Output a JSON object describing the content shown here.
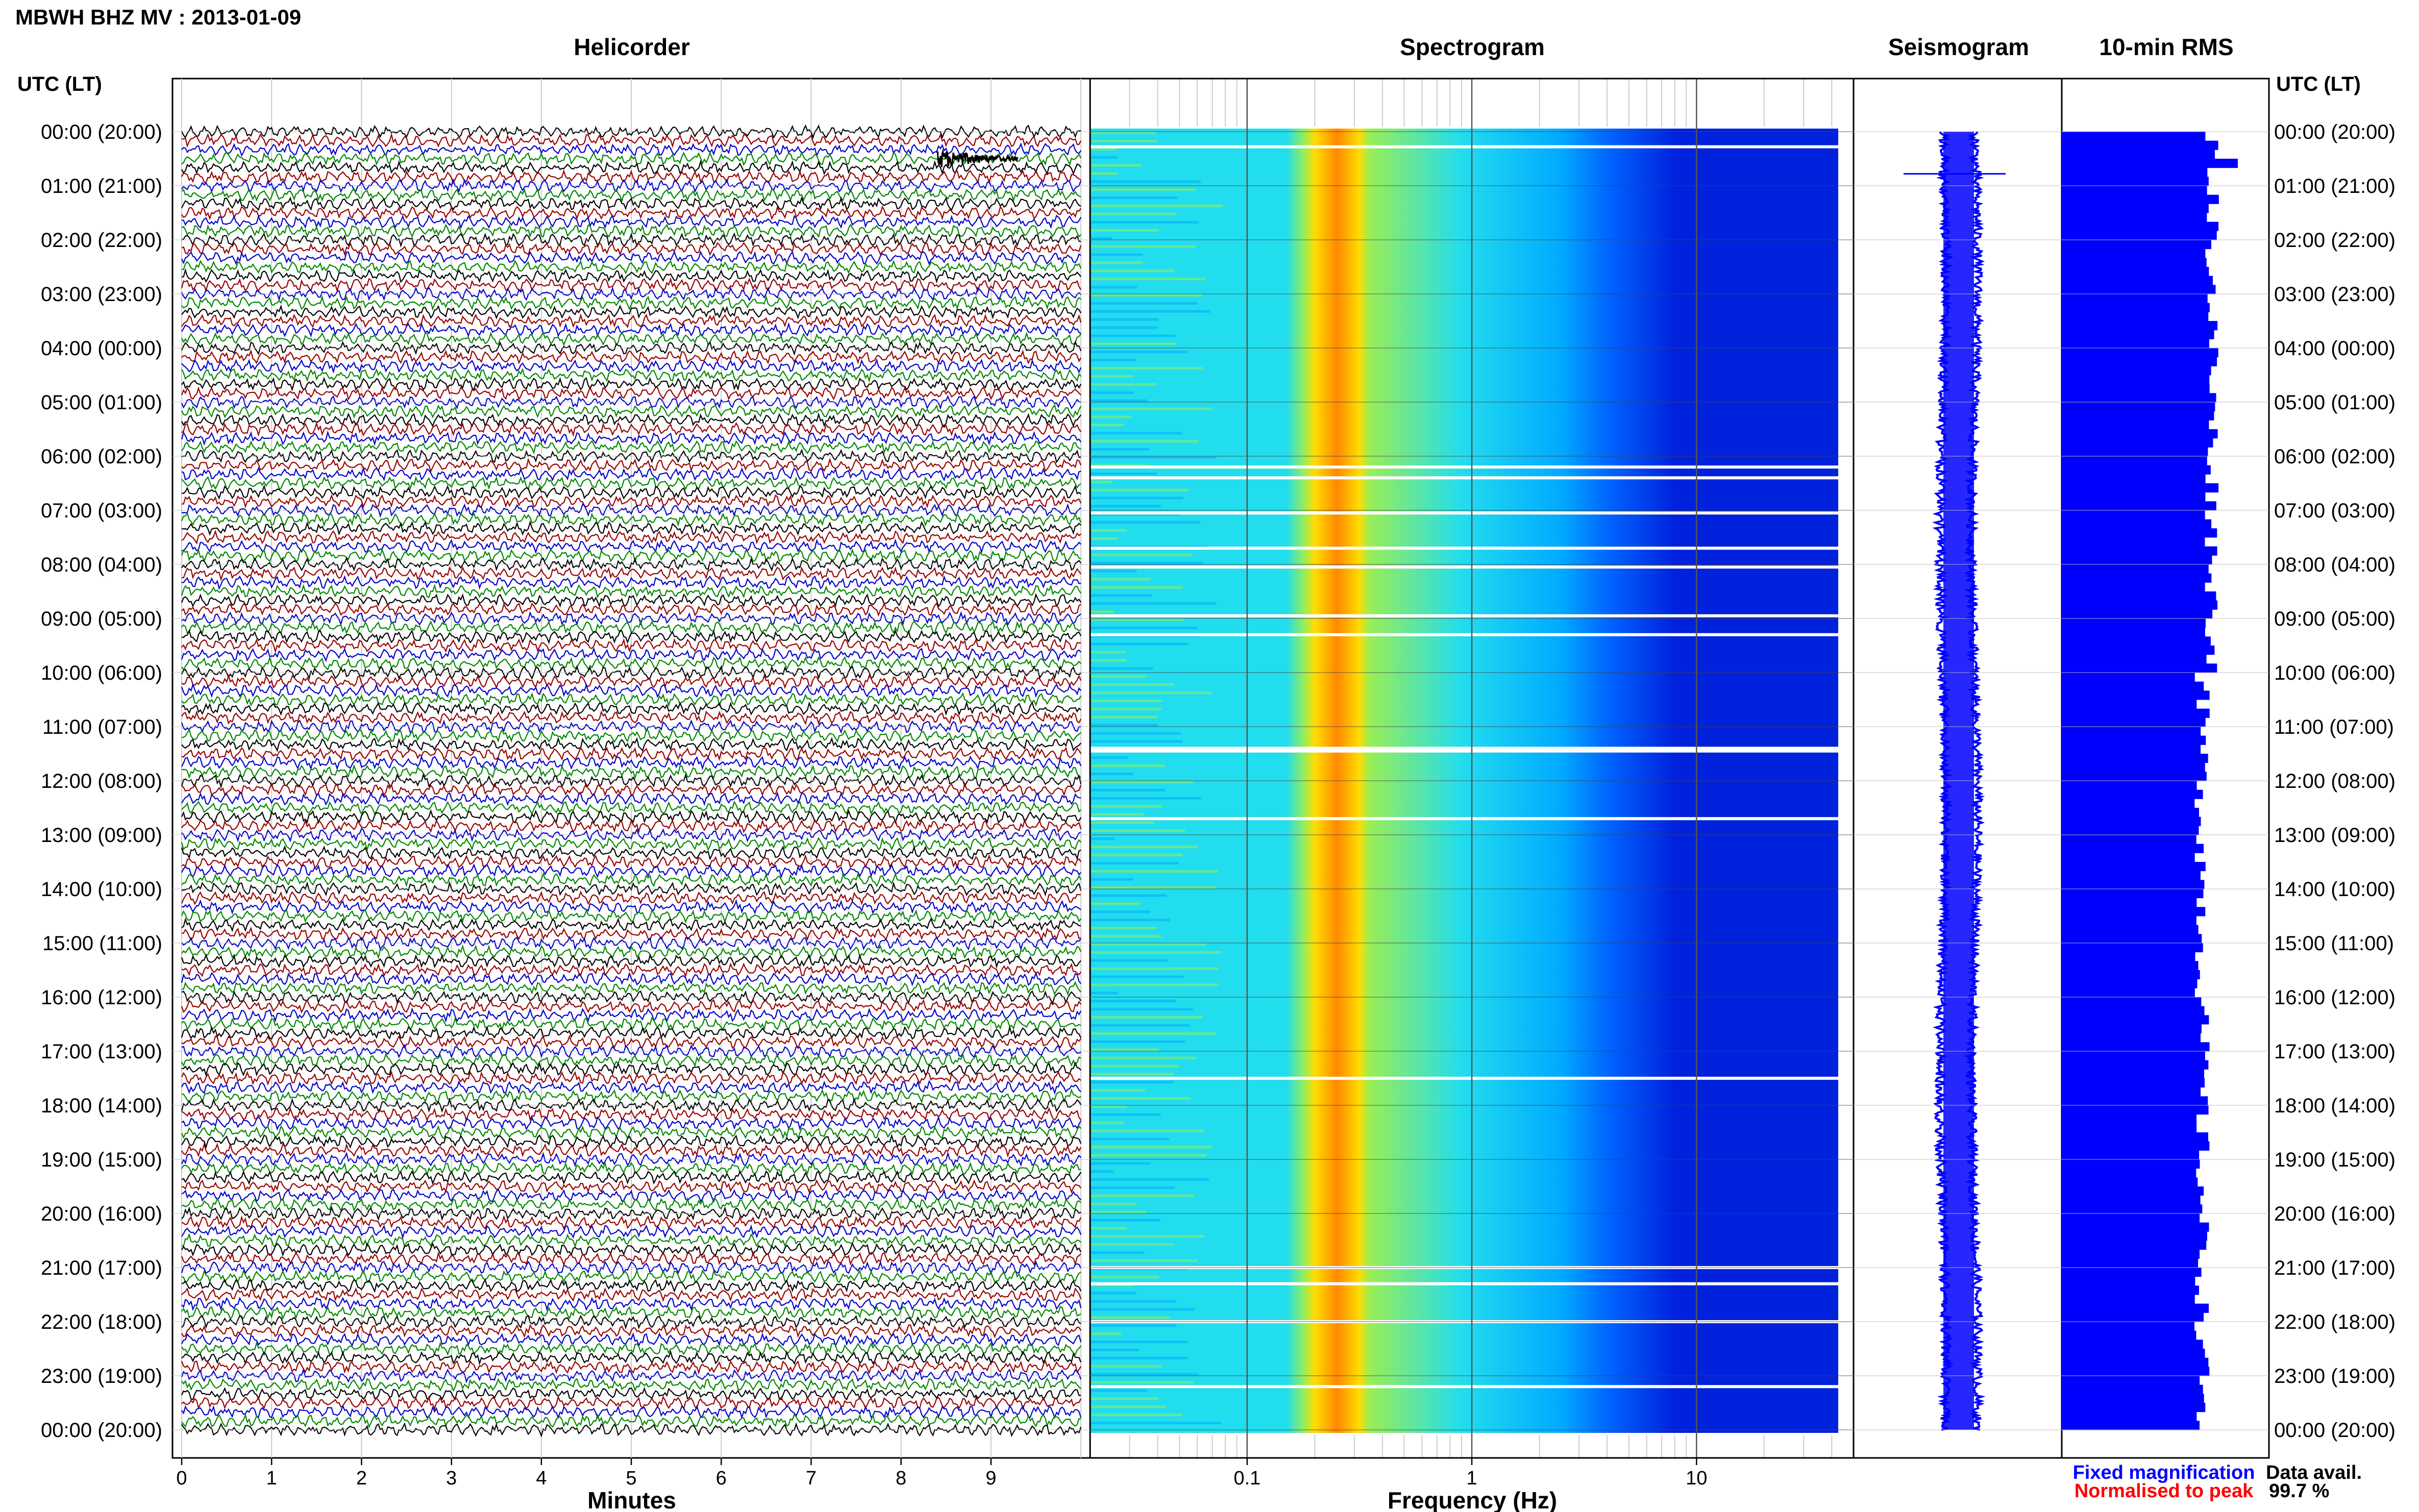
{
  "header": {
    "station_title": "MBWH BHZ MV : 2013-01-09"
  },
  "panels": {
    "helicorder_title": "Helicorder",
    "spectrogram_title": "Spectrogram",
    "seismogram_title": "Seismogram",
    "rms_title": "10-min RMS"
  },
  "axes": {
    "time_axis_label": "UTC (LT)",
    "minutes_xlabel": "Minutes",
    "frequency_xlabel": "Frequency (Hz)"
  },
  "legend": {
    "fixed_magnification": "Fixed magnification",
    "normalised_to_peak": "Normalised to peak",
    "fixed_color": "#0000ff",
    "normalised_color": "#ff0000"
  },
  "availability": {
    "label": "Data avail.",
    "value": "99.7 %"
  },
  "chart_data": [
    {
      "type": "line",
      "name": "helicorder",
      "title": "Helicorder",
      "xlabel": "Minutes",
      "x_ticks": [
        "0",
        "1",
        "2",
        "3",
        "4",
        "5",
        "6",
        "7",
        "8",
        "9"
      ],
      "xlim": [
        0,
        10
      ],
      "trace_colors": [
        "#000000",
        "#990000",
        "#0000cc",
        "#008800"
      ],
      "traces_per_hour": 6,
      "y_tick_labels": [
        "00:00 (20:00)",
        "01:00 (21:00)",
        "02:00 (22:00)",
        "03:00 (23:00)",
        "04:00 (00:00)",
        "05:00 (01:00)",
        "06:00 (02:00)",
        "07:00 (03:00)",
        "08:00 (04:00)",
        "09:00 (05:00)",
        "10:00 (06:00)",
        "11:00 (07:00)",
        "12:00 (08:00)",
        "13:00 (09:00)",
        "14:00 (10:00)",
        "15:00 (11:00)",
        "16:00 (12:00)",
        "17:00 (13:00)",
        "18:00 (14:00)",
        "19:00 (15:00)",
        "20:00 (16:00)",
        "21:00 (17:00)",
        "22:00 (18:00)",
        "23:00 (19:00)",
        "00:00 (20:00)"
      ]
    },
    {
      "type": "heatmap",
      "name": "spectrogram",
      "title": "Spectrogram",
      "xlabel": "Frequency (Hz)",
      "x_scale": "log",
      "x_ticks": [
        "0.1",
        "1",
        "10"
      ],
      "xlim": [
        0.02,
        50
      ],
      "colormap": [
        "#0022dd",
        "#0066ff",
        "#00aaff",
        "#22ddee",
        "#99ee55",
        "#ffdd00",
        "#ff8800",
        "#ff2200"
      ],
      "peak_band_hz": [
        0.18,
        0.35
      ]
    },
    {
      "type": "line",
      "name": "seismogram",
      "title": "Seismogram",
      "color": "#0000ff"
    },
    {
      "type": "bar",
      "name": "rms",
      "title": "10-min RMS",
      "color": "#0000ff",
      "orientation": "horizontal",
      "bins": 144
    }
  ]
}
